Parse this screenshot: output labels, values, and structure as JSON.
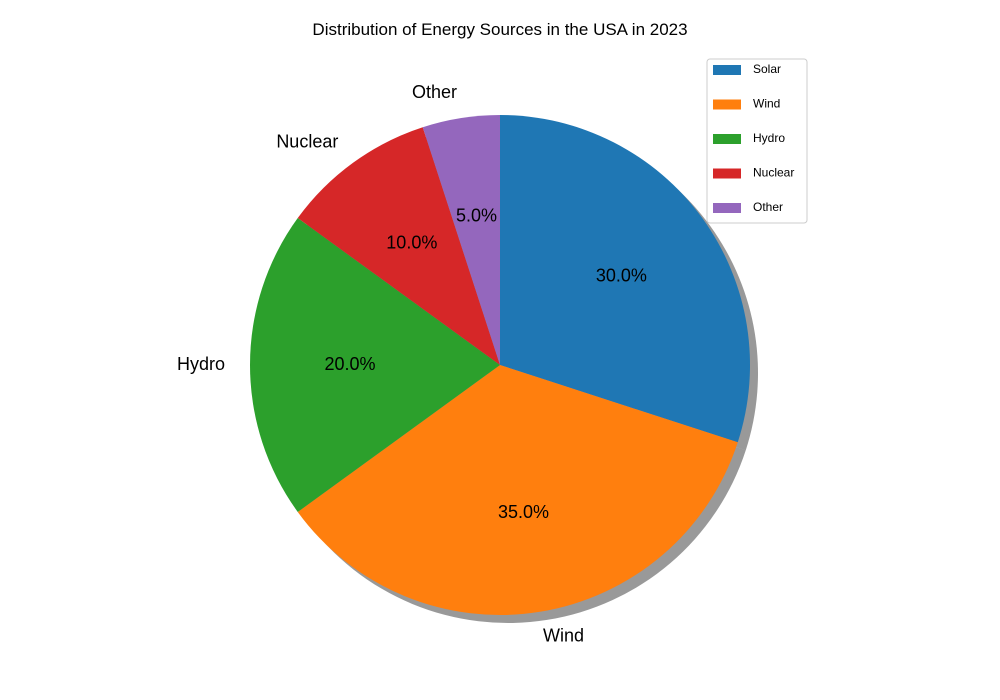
{
  "chart_data": {
    "type": "pie",
    "title": "Distribution of Energy Sources in the USA in 2023",
    "categories": [
      "Solar",
      "Wind",
      "Hydro",
      "Nuclear",
      "Other"
    ],
    "values": [
      30,
      35,
      20,
      10,
      5
    ],
    "percent_labels": [
      "30.0%",
      "35.0%",
      "20.0%",
      "10.0%",
      "5.0%"
    ],
    "colors": [
      "#1f77b4",
      "#ff7f0e",
      "#2ca02c",
      "#d62728",
      "#9467bd"
    ],
    "start_angle_deg": 90,
    "direction": "clockwise",
    "shadow": true,
    "legend": {
      "position": "top-right",
      "entries": [
        "Solar",
        "Wind",
        "Hydro",
        "Nuclear",
        "Other"
      ]
    }
  }
}
